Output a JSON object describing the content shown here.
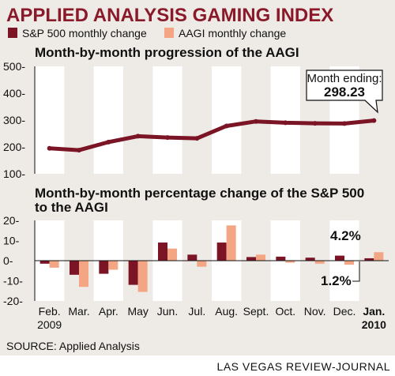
{
  "title": "APPLIED ANALYSIS GAMING INDEX",
  "legend": [
    {
      "label": "S&P 500 monthly change",
      "color": "#7b1526"
    },
    {
      "label": "AAGI monthly change",
      "color": "#f4a583"
    }
  ],
  "chart_data": [
    {
      "type": "line",
      "title": "Month-by-month progression of the AAGI",
      "categories": [
        "Feb. 2009",
        "Mar.",
        "Apr.",
        "May",
        "Jun.",
        "Jul.",
        "Aug.",
        "Sept.",
        "Oct.",
        "Nov.",
        "Dec.",
        "Jan. 2010"
      ],
      "series": [
        {
          "values": [
            195,
            188,
            218,
            240,
            235,
            232,
            278,
            295,
            290,
            288,
            287,
            298.23
          ]
        }
      ],
      "ylim": [
        100,
        500
      ],
      "yticks": [
        "500-",
        "400-",
        "300-",
        "200-",
        "100-"
      ],
      "line_color": "#7b1526",
      "callout": {
        "label": "Month ending:",
        "value": "298.23"
      }
    },
    {
      "type": "bar",
      "title": "Month-by-month percentage change of the S&P 500 to the AAGI",
      "title_lines": [
        "Month-by-month percentage change of the S&P 500",
        "to the AAGI"
      ],
      "categories": [
        "Feb. 2009",
        "Mar.",
        "Apr.",
        "May",
        "Jun.",
        "Jul.",
        "Aug.",
        "Sept.",
        "Oct.",
        "Nov.",
        "Dec.",
        "Jan. 2010"
      ],
      "series": [
        {
          "name": "S&P 500 monthly change",
          "values": [
            -1.5,
            -7,
            -6.5,
            -12,
            9,
            3,
            9,
            1.8,
            2,
            1.5,
            2.5,
            1.2
          ],
          "color": "#7b1526"
        },
        {
          "name": "AAGI monthly change",
          "values": [
            -3.5,
            -13,
            -4.5,
            -15.5,
            6,
            -3,
            17.5,
            3,
            -1,
            -1.5,
            -2,
            4.2
          ],
          "color": "#f4a583"
        }
      ],
      "ylim": [
        -20,
        20
      ],
      "yticks": [
        "20-",
        "10-",
        "0-",
        "-10-",
        "-20-"
      ],
      "annotations": {
        "aagi_last": "4.2%",
        "sp_last": "1.2%"
      }
    }
  ],
  "month_labels": [
    {
      "line1": "Feb.",
      "line2": "2009",
      "bold": false
    },
    {
      "line1": "Mar.",
      "line2": "",
      "bold": false
    },
    {
      "line1": "Apr.",
      "line2": "",
      "bold": false
    },
    {
      "line1": "May",
      "line2": "",
      "bold": false
    },
    {
      "line1": "Jun.",
      "line2": "",
      "bold": false
    },
    {
      "line1": "Jul.",
      "line2": "",
      "bold": false
    },
    {
      "line1": "Aug.",
      "line2": "",
      "bold": false
    },
    {
      "line1": "Sept.",
      "line2": "",
      "bold": false
    },
    {
      "line1": "Oct.",
      "line2": "",
      "bold": false
    },
    {
      "line1": "Nov.",
      "line2": "",
      "bold": false
    },
    {
      "line1": "Dec.",
      "line2": "",
      "bold": false
    },
    {
      "line1": "Jan.",
      "line2": "2010",
      "bold": true
    }
  ],
  "source": "SOURCE: Applied Analysis",
  "credit": "LAS VEGAS REVIEW-JOURNAL"
}
